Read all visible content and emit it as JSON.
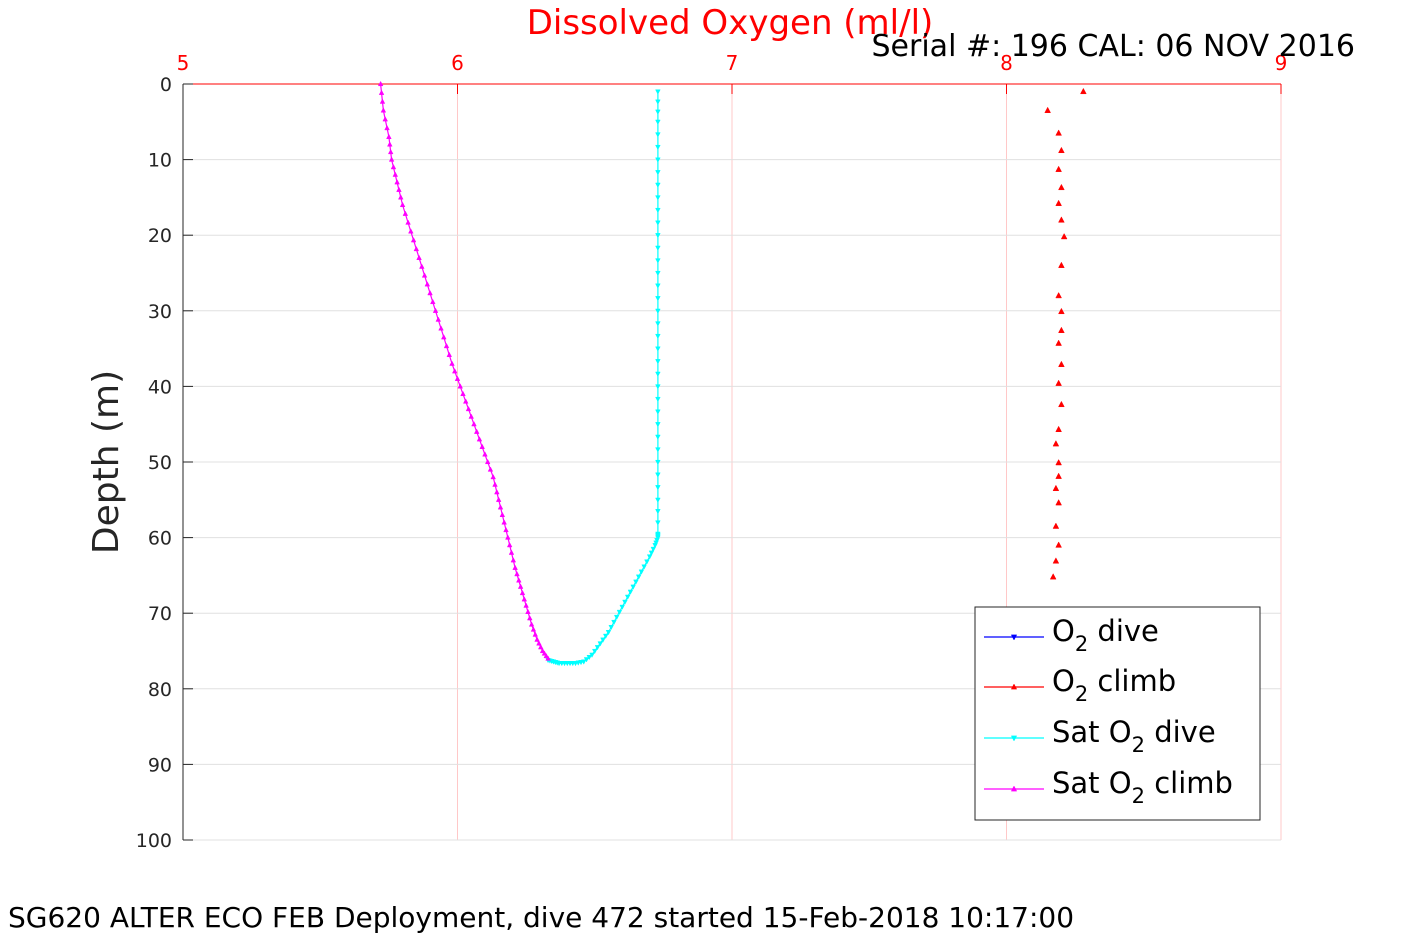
{
  "chart_data": {
    "type": "scatter",
    "title": "Dissolved Oxygen (ml/l)",
    "subtitle": "Serial #: 196  CAL: 06 NOV 2016",
    "caption": "SG620 ALTER ECO FEB Deployment, dive 472 started 15-Feb-2018 10:17:00",
    "xlabel": "",
    "ylabel": "Depth (m)",
    "xlim": [
      5,
      9
    ],
    "ylim": [
      0,
      100
    ],
    "y_reversed": true,
    "x_axis_position": "top",
    "xticks": [
      "5",
      "6",
      "7",
      "8",
      "9"
    ],
    "yticks": [
      "0",
      "10",
      "20",
      "30",
      "40",
      "50",
      "60",
      "70",
      "80",
      "90",
      "100"
    ],
    "grid": true,
    "legend_position": "bottom-right",
    "colors": {
      "title": "#ff0000",
      "x_axis": "#ff0000",
      "grid_x": "#ffc8c8",
      "grid_y": "#e0e0e0"
    },
    "legend": [
      {
        "prefix": "O",
        "sub": "2",
        "suffix": " dive",
        "color": "#0000ff",
        "marker": "down"
      },
      {
        "prefix": "O",
        "sub": "2",
        "suffix": " climb",
        "color": "#ff0000",
        "marker": "up"
      },
      {
        "prefix": "Sat O",
        "sub": "2",
        "suffix": " dive",
        "color": "#00ffff",
        "marker": "down"
      },
      {
        "prefix": "Sat O",
        "sub": "2",
        "suffix": " climb",
        "color": "#ff00ff",
        "marker": "up"
      }
    ],
    "series": [
      {
        "name": "O2 climb",
        "color": "#ff0000",
        "marker": "up",
        "line": false,
        "x": [
          8.28,
          8.15,
          8.19,
          8.2,
          8.19,
          8.2,
          8.19,
          8.2,
          8.21,
          8.2,
          8.19,
          8.2,
          8.2,
          8.19,
          8.2,
          8.19,
          8.2,
          8.19,
          8.18,
          8.19,
          8.19,
          8.18,
          8.19,
          8.18,
          8.19,
          8.18,
          8.17
        ],
        "y": [
          1,
          3.5,
          6.5,
          8.8,
          11.3,
          13.7,
          15.8,
          18,
          20.2,
          24,
          28,
          30.1,
          32.6,
          34.3,
          37.1,
          39.6,
          42.4,
          45.7,
          47.6,
          50.1,
          51.9,
          53.5,
          55.4,
          58.5,
          61,
          63.1,
          65.2
        ]
      },
      {
        "name": "Sat O2 dive",
        "color": "#00ffff",
        "marker": "down",
        "line": true,
        "x": [
          6.73,
          6.73,
          6.73,
          6.73,
          6.73,
          6.73,
          6.73,
          6.73,
          6.73,
          6.73,
          6.73,
          6.73,
          6.73,
          6.73,
          6.72,
          6.7,
          6.67,
          6.64,
          6.61,
          6.58,
          6.55,
          6.52,
          6.49,
          6.46,
          6.43,
          6.4,
          6.37,
          6.35,
          6.33
        ],
        "y": [
          1,
          5,
          10,
          15,
          20,
          25,
          30,
          35,
          40,
          45,
          50,
          55,
          59.5,
          60,
          61,
          62.5,
          64.5,
          66.5,
          68.5,
          70.5,
          72.5,
          74,
          75.5,
          76.4,
          76.6,
          76.6,
          76.6,
          76.4,
          76.2
        ]
      },
      {
        "name": "Sat O2 climb",
        "color": "#ff00ff",
        "marker": "up",
        "line": true,
        "x": [
          6.33,
          6.31,
          6.29,
          6.27,
          6.25,
          6.23,
          6.21,
          6.19,
          6.17,
          6.15,
          6.13,
          6.1,
          6.07,
          6.04,
          6.01,
          5.98,
          5.95,
          5.92,
          5.89,
          5.86,
          5.83,
          5.8,
          5.78,
          5.76,
          5.75,
          5.73,
          5.72
        ],
        "y": [
          76,
          75,
          73.5,
          71.5,
          69,
          66.5,
          64,
          61,
          58,
          55,
          52,
          49,
          46,
          43,
          40,
          37,
          33.5,
          30,
          26.5,
          23,
          19.5,
          16,
          13,
          10,
          7,
          3.5,
          0
        ]
      }
    ]
  }
}
